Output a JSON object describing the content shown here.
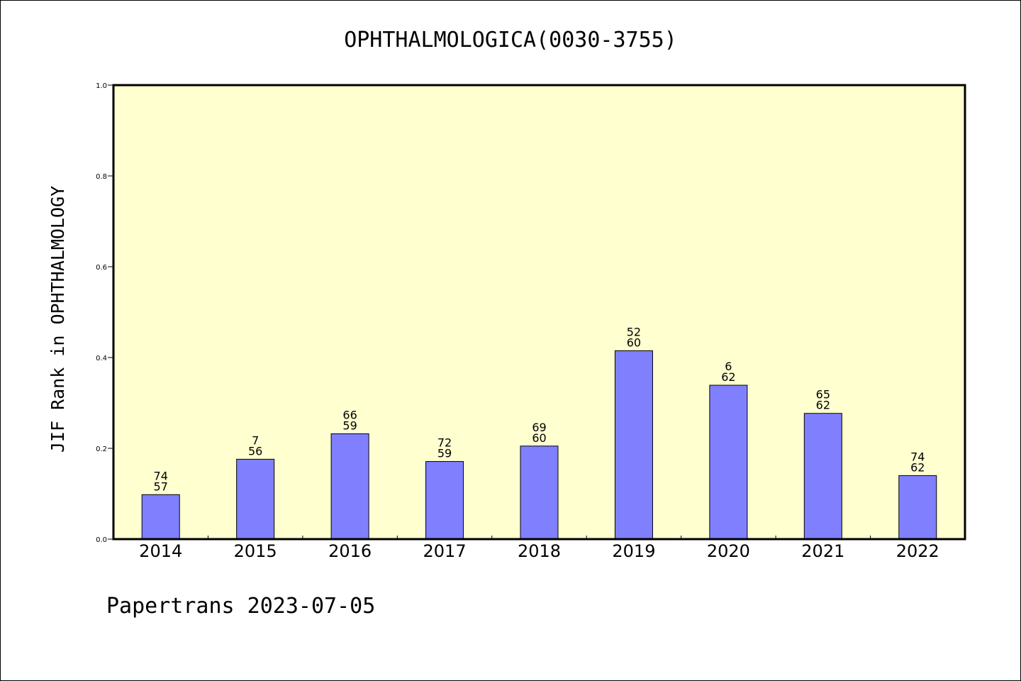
{
  "chart_data": {
    "type": "bar",
    "title": "OPHTHALMOLOGICA(0030-3755)",
    "ylabel": "JIF Rank in OPHTHALMOLOGY",
    "xlabel": "",
    "ylim": [
      0,
      1.0
    ],
    "yticks": [
      "0.0",
      "0.2",
      "0.4",
      "0.6",
      "0.8",
      "1.0"
    ],
    "categories": [
      "2014",
      "2015",
      "2016",
      "2017",
      "2018",
      "2019",
      "2020",
      "2021",
      "2022"
    ],
    "values": [
      0.098,
      0.176,
      0.232,
      0.171,
      0.205,
      0.415,
      0.339,
      0.277,
      0.14
    ],
    "annotations": [
      {
        "top": "74",
        "bottom": "57"
      },
      {
        "top": "7",
        "bottom": "56"
      },
      {
        "top": "66",
        "bottom": "59"
      },
      {
        "top": "72",
        "bottom": "59"
      },
      {
        "top": "69",
        "bottom": "60"
      },
      {
        "top": "52",
        "bottom": "60"
      },
      {
        "top": "6",
        "bottom": "62"
      },
      {
        "top": "65",
        "bottom": "62"
      },
      {
        "top": "74",
        "bottom": "62"
      }
    ],
    "grid": false,
    "colors": {
      "plot_background": "#ffffd0",
      "bar_fill": "#8080ff",
      "bar_stroke": "#000000"
    }
  },
  "footer": "Papertrans 2023-07-05"
}
